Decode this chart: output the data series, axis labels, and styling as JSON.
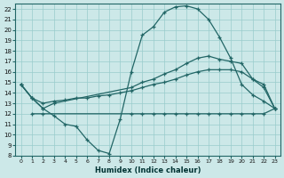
{
  "xlabel": "Humidex (Indice chaleur)",
  "xlim": [
    -0.5,
    23.5
  ],
  "ylim": [
    8,
    22.5
  ],
  "xticks": [
    0,
    1,
    2,
    3,
    4,
    5,
    6,
    7,
    8,
    9,
    10,
    11,
    12,
    13,
    14,
    15,
    16,
    17,
    18,
    19,
    20,
    21,
    22,
    23
  ],
  "yticks": [
    8,
    9,
    10,
    11,
    12,
    13,
    14,
    15,
    16,
    17,
    18,
    19,
    20,
    21,
    22
  ],
  "bg_color": "#cce8e8",
  "grid_color": "#99cccc",
  "line_color": "#226666",
  "line1_x": [
    0,
    1,
    2,
    3,
    4,
    5,
    6,
    7,
    8,
    9,
    10,
    11,
    12,
    13,
    14,
    15,
    16,
    17,
    18,
    19,
    20,
    21,
    22,
    23
  ],
  "line1_y": [
    14.8,
    13.5,
    12.5,
    11.8,
    11.0,
    10.8,
    9.5,
    8.5,
    8.2,
    11.5,
    16.0,
    19.5,
    20.3,
    21.7,
    22.2,
    22.3,
    22.0,
    21.0,
    19.3,
    17.3,
    14.8,
    13.8,
    13.2,
    12.5
  ],
  "line2_x": [
    0,
    1,
    2,
    3,
    10,
    11,
    12,
    13,
    14,
    15,
    16,
    17,
    18,
    19,
    20,
    21,
    22,
    23
  ],
  "line2_y": [
    14.8,
    13.5,
    12.5,
    13.0,
    14.5,
    15.0,
    15.3,
    15.8,
    16.2,
    16.8,
    17.3,
    17.5,
    17.2,
    17.0,
    16.8,
    15.3,
    14.8,
    12.5
  ],
  "line3_x": [
    0,
    1,
    2,
    3,
    4,
    5,
    6,
    7,
    8,
    9,
    10,
    11,
    12,
    13,
    14,
    15,
    16,
    17,
    18,
    19,
    20,
    21,
    22,
    23
  ],
  "line3_y": [
    14.8,
    13.5,
    13.0,
    13.2,
    13.3,
    13.5,
    13.5,
    13.7,
    13.8,
    14.0,
    14.2,
    14.5,
    14.8,
    15.0,
    15.3,
    15.7,
    16.0,
    16.2,
    16.2,
    16.2,
    16.0,
    15.3,
    14.5,
    12.5
  ],
  "line4_x": [
    1,
    2,
    10,
    11,
    12,
    13,
    14,
    15,
    16,
    17,
    18,
    19,
    20,
    21,
    22,
    23
  ],
  "line4_y": [
    12.0,
    12.0,
    12.0,
    12.0,
    12.0,
    12.0,
    12.0,
    12.0,
    12.0,
    12.0,
    12.0,
    12.0,
    12.0,
    12.0,
    12.0,
    12.5
  ]
}
